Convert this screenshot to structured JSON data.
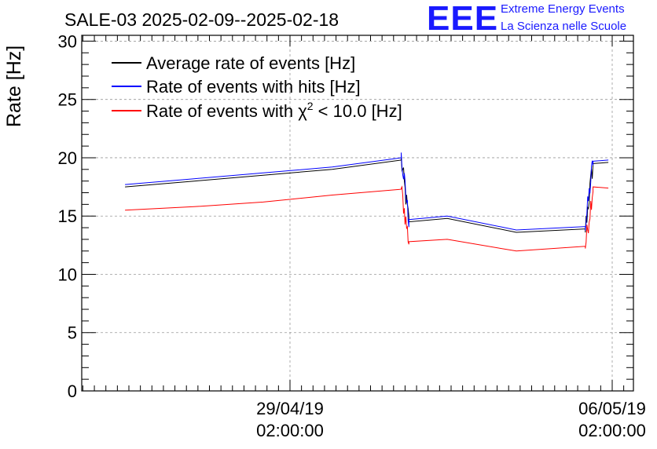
{
  "chart_data": {
    "type": "line",
    "title": "SALE-03 2025-02-09--2025-02-18",
    "ylabel": "Rate [Hz]",
    "xlabel": "",
    "ylim": [
      0,
      30.5
    ],
    "yticks": [
      0,
      5,
      10,
      15,
      20,
      25,
      30
    ],
    "xticks": [
      {
        "x": "2019-04-29 02:00:00",
        "line1": "29/04/19",
        "line2": "02:00:00"
      },
      {
        "x": "2019-05-06 02:00:00",
        "line1": "06/05/19",
        "line2": "02:00:00"
      }
    ],
    "grid": true,
    "legend_position": "top-left",
    "series": [
      {
        "name": "Average rate of events [Hz]",
        "color": "#000000",
        "x": [
          "2019-04-25 12:00",
          "2019-04-27 00:00",
          "2019-04-28 12:00",
          "2019-04-30 00:00",
          "2019-05-01 12:00",
          "2019-05-01 16:00",
          "2019-05-02 12:00",
          "2019-05-04 00:00",
          "2019-05-05 12:00",
          "2019-05-05 16:00",
          "2019-05-06 00:00"
        ],
        "values": [
          17.5,
          18.0,
          18.5,
          19.0,
          19.8,
          14.5,
          14.8,
          13.6,
          13.9,
          19.5,
          19.6
        ]
      },
      {
        "name": "Rate of events with hits [Hz]",
        "color": "#0000ff",
        "x": [
          "2019-04-25 12:00",
          "2019-04-27 00:00",
          "2019-04-28 12:00",
          "2019-04-30 00:00",
          "2019-05-01 12:00",
          "2019-05-01 16:00",
          "2019-05-02 12:00",
          "2019-05-04 00:00",
          "2019-05-05 12:00",
          "2019-05-05 16:00",
          "2019-05-06 00:00"
        ],
        "values": [
          17.7,
          18.2,
          18.7,
          19.2,
          20.0,
          14.7,
          15.0,
          13.8,
          14.1,
          19.7,
          19.8
        ]
      },
      {
        "name": "Rate of events with χ² < 10.0 [Hz]",
        "color": "#ff0000",
        "x": [
          "2019-04-25 12:00",
          "2019-04-27 00:00",
          "2019-04-28 12:00",
          "2019-04-30 00:00",
          "2019-05-01 12:00",
          "2019-05-01 16:00",
          "2019-05-02 12:00",
          "2019-05-04 00:00",
          "2019-05-05 12:00",
          "2019-05-05 16:00",
          "2019-05-06 00:00"
        ],
        "values": [
          15.5,
          15.8,
          16.2,
          16.8,
          17.3,
          12.8,
          13.0,
          12.0,
          12.4,
          17.5,
          17.4
        ]
      }
    ],
    "legend": [
      {
        "color": "#000000",
        "label": "Average rate of events [Hz]"
      },
      {
        "color": "#0000ff",
        "label": "Rate of events with hits [Hz]"
      },
      {
        "color": "#ff0000",
        "label_prefix": "Rate of events with χ",
        "label_sup": "2",
        "label_suffix": " < 10.0 [Hz]"
      }
    ]
  },
  "logo": {
    "mark": "EEE",
    "line1": "Extreme Energy Events",
    "line2": "La Scienza nelle Scuole",
    "color": "#1a1aff"
  }
}
